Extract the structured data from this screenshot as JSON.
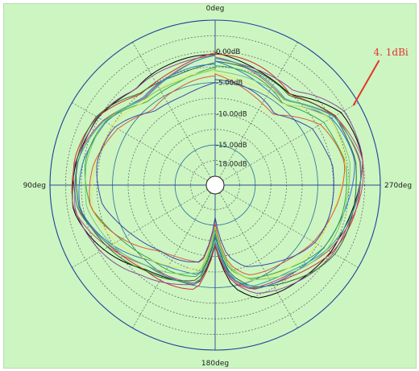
{
  "chart_data": {
    "type": "polar-line",
    "angle_labels": [
      {
        "angle": 0,
        "text": "0deg"
      },
      {
        "angle": 90,
        "text": "90deg"
      },
      {
        "angle": 180,
        "text": "180deg"
      },
      {
        "angle": 270,
        "text": "270deg"
      }
    ],
    "radial_tick_labels": [
      "0.00dB",
      "-5.00dB",
      "-10.00dB",
      "-15.00dB",
      "-18.00dB"
    ],
    "radial_axis": {
      "outer": 5,
      "inner": -20,
      "unit": "dB",
      "ring_step": 2.5
    },
    "spokes_deg": [
      0,
      30,
      60,
      90,
      120,
      150,
      180,
      210,
      240,
      270,
      300,
      330
    ],
    "grid": true,
    "annotation": {
      "text": "4. 1dBi",
      "value_db": 4.1,
      "angle": 300
    },
    "series_profile": {
      "angles": [
        0,
        20,
        40,
        60,
        80,
        100,
        120,
        140,
        160,
        170,
        180,
        190,
        200,
        220,
        240,
        260,
        280,
        300,
        320,
        340
      ],
      "values_db": [
        -0.5,
        -1.5,
        -2.0,
        0.5,
        1.5,
        1.5,
        -1.0,
        -3.5,
        -4.5,
        -5.0,
        -12.0,
        -5.5,
        -3.0,
        -1.5,
        0.5,
        1.5,
        2.5,
        1.5,
        -2.5,
        -1.5
      ]
    },
    "series": [
      {
        "color": "#000000",
        "offset_db": 0.0
      },
      {
        "color": "#d42a2a",
        "offset_db": -0.3
      },
      {
        "color": "#8a4a9c",
        "offset_db": 0.1
      },
      {
        "color": "#c44a6a",
        "offset_db": -0.7
      },
      {
        "color": "#2d6e2d",
        "offset_db": -0.6
      },
      {
        "color": "#2f6fd6",
        "offset_db": -1.5
      },
      {
        "color": "#37a83a",
        "offset_db": -2.2
      },
      {
        "color": "#e9e95a",
        "offset_db": -2.6
      },
      {
        "color": "#2fa3a3",
        "offset_db": -0.9
      },
      {
        "color": "#7ec86a",
        "offset_db": -1.8
      },
      {
        "color": "#d85a3a",
        "offset_db": -3.5
      },
      {
        "color": "#3a4aa8",
        "offset_db": -4.2
      }
    ]
  }
}
